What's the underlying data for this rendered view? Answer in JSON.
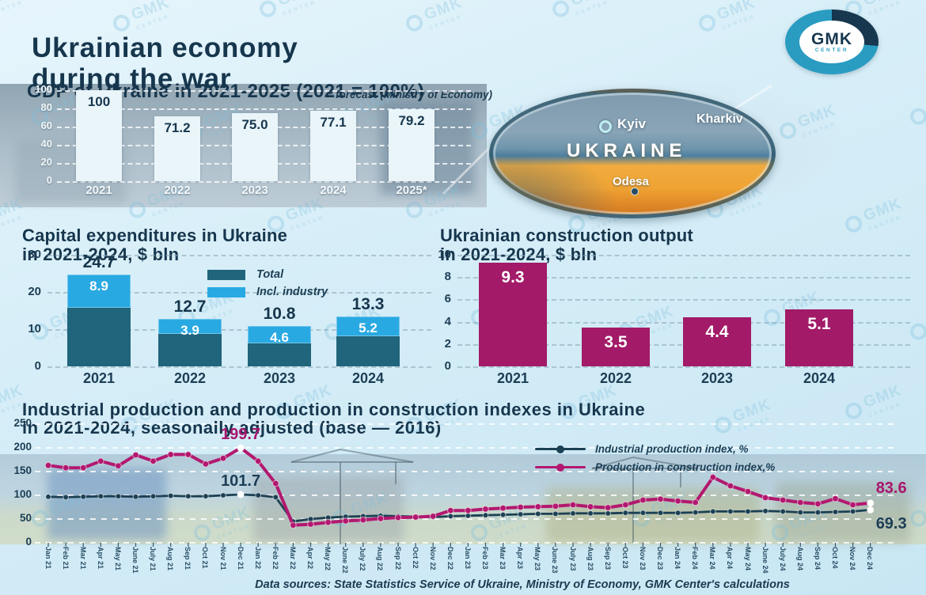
{
  "header": {
    "title_line1": "Ukrainian economy",
    "title_line2": "during the war"
  },
  "logo": {
    "text": "GMK",
    "subtext": "CENTER"
  },
  "watermark": {
    "text": "GMK",
    "subtext": "CENTER"
  },
  "map": {
    "country_label": "UKRAINE",
    "cities": {
      "kyiv": "Kyiv",
      "kharkiv": "Kharkiv",
      "odesa": "Odesa"
    }
  },
  "footer": {
    "text": "Data sources: State Statistics Service of Ukraine, Ministry of Economy, GMK Center's calculations"
  },
  "chart_data": [
    {
      "id": "gdp",
      "type": "bar",
      "title": "GDP of Ukraine in 2021-2025 (2021 = 100%)",
      "note": "* forecast (Ministry of Economy)",
      "categories": [
        "2021",
        "2022",
        "2023",
        "2024",
        "2025*"
      ],
      "values": [
        100,
        71.2,
        75.0,
        77.1,
        79.2
      ],
      "labels": [
        "100",
        "71.2",
        "75.0",
        "77.1",
        "79.2"
      ],
      "ylim": [
        0,
        100
      ],
      "yticks": [
        100,
        80,
        60,
        40,
        20,
        0
      ],
      "grid": true,
      "bar_color": "#e9f5f9",
      "value_color": "#16364d"
    },
    {
      "id": "capex",
      "type": "stacked-bar",
      "title": "Capital expenditures in Ukraine in 2021-2024, $ bln",
      "title_lines": [
        "Capital expenditures in Ukraine",
        "in 2021-2024, $ bln"
      ],
      "categories": [
        "2021",
        "2022",
        "2023",
        "2024"
      ],
      "series": [
        {
          "name": "Total",
          "color": "#20657b",
          "values": [
            24.7,
            12.7,
            10.8,
            13.3
          ],
          "labels": [
            "24.7",
            "12.7",
            "10.8",
            "13.3"
          ]
        },
        {
          "name": "Incl. industry",
          "color": "#29a9e2",
          "values": [
            8.9,
            3.9,
            4.6,
            5.2
          ],
          "labels": [
            "8.9",
            "3.9",
            "4.6",
            "5.2"
          ]
        }
      ],
      "ylim": [
        0,
        30
      ],
      "yticks": [
        30,
        20,
        10,
        0
      ],
      "grid": true,
      "legend_position": "inside-right"
    },
    {
      "id": "construction",
      "type": "bar",
      "title": "Ukrainian construction output in 2021-2024, $ bln",
      "title_lines": [
        "Ukrainian construction output",
        "in 2021-2024, $ bln"
      ],
      "categories": [
        "2021",
        "2022",
        "2023",
        "2024"
      ],
      "values": [
        9.3,
        3.5,
        4.4,
        5.1
      ],
      "labels": [
        "9.3",
        "3.5",
        "4.4",
        "5.1"
      ],
      "ylim": [
        0,
        10
      ],
      "yticks": [
        10,
        8,
        6,
        4,
        2,
        0
      ],
      "grid": true,
      "bar_color": "#a21a68",
      "value_color": "#ffffff"
    },
    {
      "id": "indexes",
      "type": "line",
      "title": "Industrial production and production in construction indexes in Ukraine in 2021-2024, seasonally adjusted (base — 2016)",
      "title_lines": [
        "Industrial production and production in construction indexes in Ukraine",
        "in 2021-2024, seasonally adjusted (base — 2016)"
      ],
      "x": [
        "Jan 21",
        "Feb 21",
        "Mar 21",
        "Apr 21",
        "May 21",
        "June 21",
        "July 21",
        "Aug 21",
        "Sep 21",
        "Oct 21",
        "Nov 21",
        "Dec 21",
        "Jan 22",
        "Feb 22",
        "Mar 22",
        "Apr 22",
        "May 22",
        "June 22",
        "July 22",
        "Aug 22",
        "Sep 22",
        "Oct 22",
        "Nov 22",
        "Dec 22",
        "Jan 23",
        "Feb 23",
        "Mar 23",
        "Apr 23",
        "May 23",
        "June 23",
        "July 23",
        "Aug 23",
        "Sep 23",
        "Oct 23",
        "Nov 23",
        "Dec 23",
        "Jan 24",
        "Feb 24",
        "Mar 24",
        "Apr 24",
        "May 24",
        "June 24",
        "July 24",
        "Aug 24",
        "Sep 24",
        "Oct 24",
        "Nov 24",
        "Dec 24"
      ],
      "ylim": [
        0,
        250
      ],
      "yticks": [
        250,
        200,
        150,
        100,
        50,
        0
      ],
      "grid": true,
      "legend_position": "top-right",
      "series": [
        {
          "name": "Industrial production index, %",
          "color": "#1c4053",
          "values": [
            97,
            96,
            97,
            98,
            98,
            97,
            98,
            99,
            98,
            98,
            100,
            101.7,
            100,
            96,
            45,
            50,
            53,
            55,
            56,
            57,
            56,
            55,
            54,
            56,
            57,
            58,
            59,
            60,
            61,
            61,
            62,
            62,
            62,
            63,
            63,
            63,
            63,
            64,
            66,
            66,
            66,
            67,
            66,
            64,
            64,
            65,
            66,
            69.3
          ]
        },
        {
          "name": "Production in construction index,%",
          "color": "#b2186f",
          "values": [
            163,
            158,
            158,
            172,
            162,
            185,
            172,
            186,
            186,
            166,
            178,
            199.7,
            172,
            125,
            37,
            39,
            43,
            46,
            48,
            51,
            53,
            54,
            56,
            68,
            68,
            71,
            73,
            75,
            76,
            77,
            80,
            76,
            74,
            80,
            90,
            92,
            88,
            85,
            138,
            120,
            108,
            95,
            90,
            85,
            82,
            93,
            80,
            83.6
          ]
        }
      ],
      "annotations": [
        {
          "text": "199.7",
          "series": 1,
          "index": 11,
          "placement": "above"
        },
        {
          "text": "101.7",
          "series": 0,
          "index": 11,
          "placement": "above"
        },
        {
          "text": "83.6",
          "series": 1,
          "index": 47,
          "placement": "above"
        },
        {
          "text": "69.3",
          "series": 0,
          "index": 47,
          "placement": "below"
        }
      ],
      "highlight_points": [
        11,
        47
      ]
    }
  ]
}
